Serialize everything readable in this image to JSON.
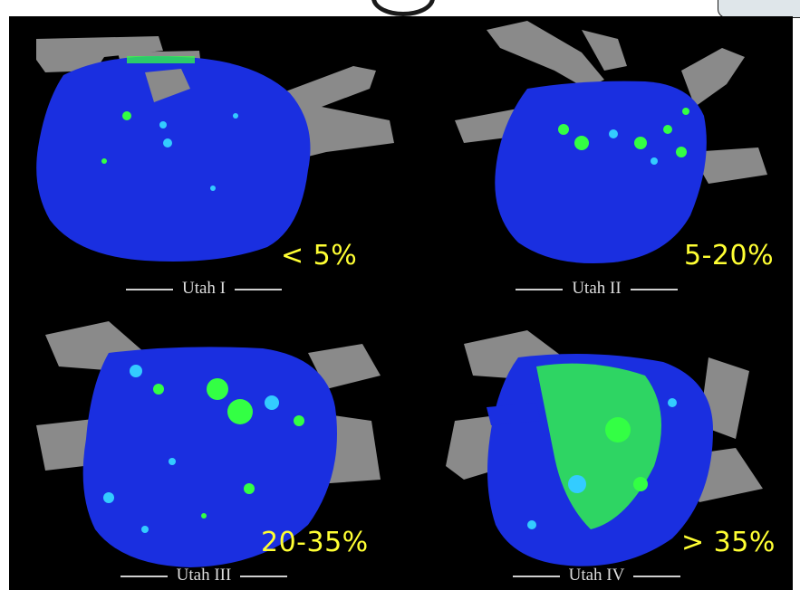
{
  "panels": [
    {
      "id": "utah-1",
      "caption": "Utah I",
      "percent": "< 5%"
    },
    {
      "id": "utah-2",
      "caption": "Utah II",
      "percent": "5-20%"
    },
    {
      "id": "utah-3",
      "caption": "Utah III",
      "percent": "20-35%"
    },
    {
      "id": "utah-4",
      "caption": "Utah IV",
      "percent": "> 35%"
    }
  ],
  "colors": {
    "background": "#000000",
    "tissue": "#1a2fe0",
    "fibrosis": "#33ff44",
    "fibrosis_edge": "#33ccff",
    "veins": "#8a8a8a",
    "percent_text": "#ffff33"
  }
}
